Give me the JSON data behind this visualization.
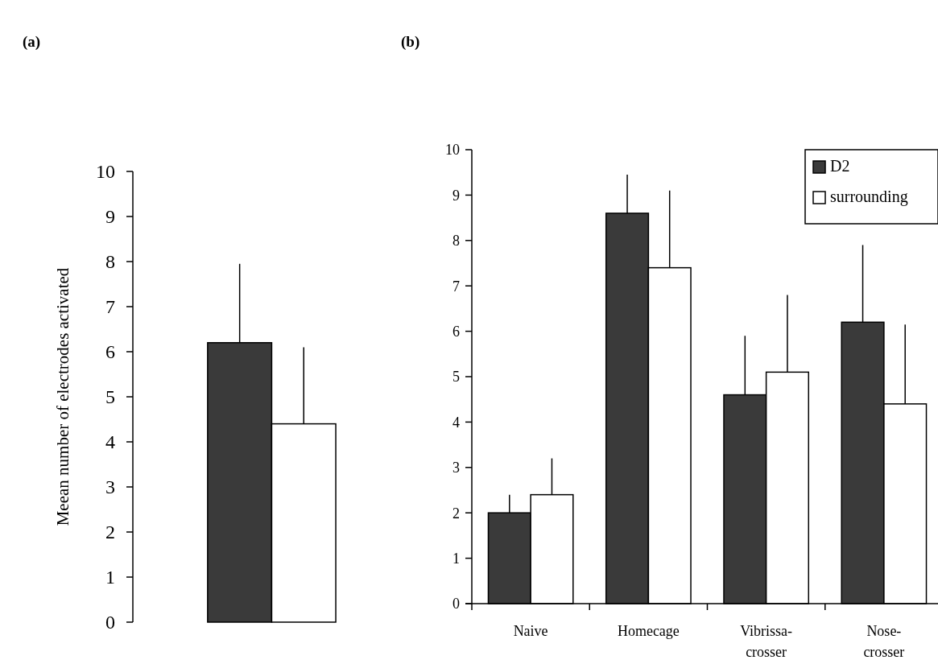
{
  "chart_data": [
    {
      "type": "bar",
      "title": "(a)",
      "ylabel": "Meean number of electrodes activated",
      "categories": [
        null
      ],
      "series": [
        {
          "color": "#3a3a3a",
          "values": [
            6.2
          ],
          "errors": [
            [
              6.2,
              7.95
            ]
          ]
        },
        {
          "color": "#ffffff",
          "values": [
            4.4
          ],
          "errors": [
            [
              4.4,
              6.1
            ]
          ]
        }
      ],
      "ylim": [
        0,
        10
      ],
      "yticks": [
        0,
        1,
        2,
        3,
        4,
        5,
        6,
        7,
        8,
        9,
        10
      ],
      "legend": false,
      "grid": false
    },
    {
      "type": "bar",
      "title": "(b)",
      "categories": [
        "Naive",
        "Homecage",
        "Vibrissa-\ncrosser",
        "Nose-\ncrosser"
      ],
      "series": [
        {
          "name": "D2",
          "color": "#3a3a3a",
          "values": [
            2.0,
            8.6,
            4.6,
            6.2
          ],
          "errors": [
            [
              2.0,
              2.4
            ],
            [
              8.6,
              9.45
            ],
            [
              4.6,
              5.9
            ],
            [
              6.2,
              7.9
            ]
          ]
        },
        {
          "name": "surrounding",
          "color": "#ffffff",
          "values": [
            2.4,
            7.4,
            5.1,
            4.4
          ],
          "errors": [
            [
              2.4,
              3.2
            ],
            [
              7.4,
              9.1
            ],
            [
              5.1,
              6.8
            ],
            [
              4.4,
              6.15
            ]
          ]
        }
      ],
      "ylim": [
        0,
        10
      ],
      "yticks": [
        0,
        1,
        2,
        3,
        4,
        5,
        6,
        7,
        8,
        9,
        10
      ],
      "legend": "top right",
      "grid": false
    }
  ]
}
